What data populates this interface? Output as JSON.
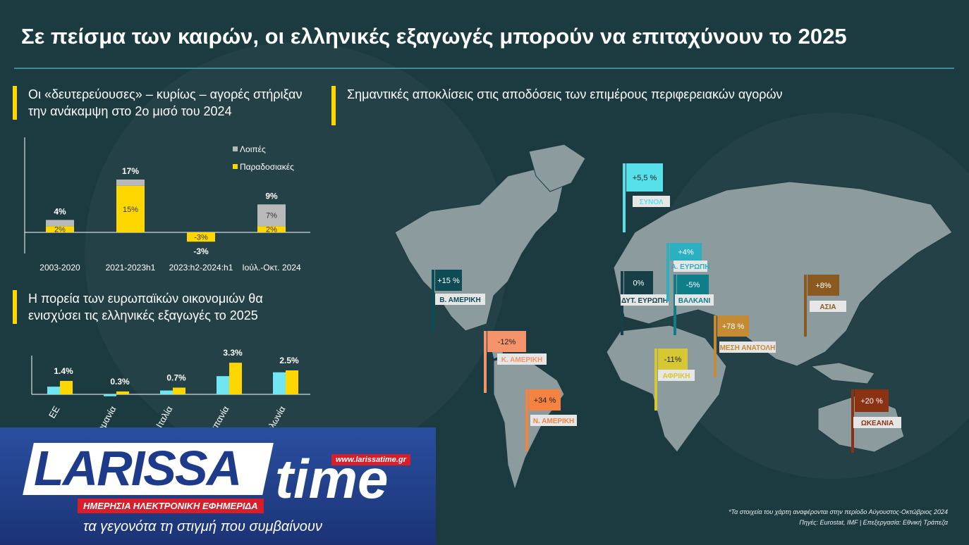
{
  "title": "Σε πείσμα των καιρών, οι ελληνικές εξαγωγές μπορούν να επιταχύνουν το 2025",
  "chart_data": [
    {
      "type": "bar",
      "stacked": true,
      "title": "Οι «δευτερεύουσες» – κυρίως – αγορές στήριξαν την ανάκαμψη στο 2ο μισό του 2024",
      "categories": [
        "2003-2020",
        "2021-2023h1",
        "2023:h2-2024:h1",
        "Ιούλ.-Οκτ. 2024"
      ],
      "series": [
        {
          "name": "Παραδοσιακές",
          "color": "#ffd700",
          "values": [
            2,
            15,
            -3,
            2
          ],
          "value_labels": [
            "2%",
            "15%",
            "-3%",
            "2%"
          ]
        },
        {
          "name": "Λοιπές",
          "color": "#b9b9b9",
          "values": [
            2,
            2,
            null,
            7
          ],
          "value_labels": [
            null,
            null,
            null,
            "7%"
          ]
        }
      ],
      "totals": [
        4,
        17,
        -3,
        9
      ],
      "total_labels": [
        "4%",
        "17%",
        "-3%",
        "9%"
      ]
    },
    {
      "type": "bar",
      "title": "Η πορεία των ευρωπαϊκών οικονομιών θα ενισχύσει τις ελληνικές εξαγωγές το 2025",
      "categories": [
        "ΕΕ",
        "Γερμανία",
        "Ιταλία",
        "Ισπανία",
        "Πολωνία"
      ],
      "series": [
        {
          "color": "#6fe6f2",
          "values": [
            0.8,
            -0.2,
            0.4,
            1.9,
            2.3
          ]
        },
        {
          "color": "#ffd700",
          "values": [
            1.4,
            0.3,
            0.7,
            3.3,
            2.5
          ],
          "value_labels": [
            "1.4%",
            "0.3%",
            "0.7%",
            "3.3%",
            "2.5%"
          ]
        }
      ]
    }
  ],
  "map": {
    "title": "Σημαντικές αποκλίσεις στις αποδόσεις των επιμέρους περιφερειακών αγορών",
    "flags": [
      {
        "value": "+5,5 %",
        "region": "ΣΥΝΟΛ",
        "color": "#57e0ea"
      },
      {
        "value": "+15 %",
        "region": "Β. ΑΜΕΡΙΚΗ",
        "color": "#0d4b55"
      },
      {
        "value": "-12%",
        "region": "Κ. ΑΜΕΡΙΚΗ",
        "color": "#f5936b"
      },
      {
        "value": "+34 %",
        "region": "Ν. ΑΜΕΡΙΚΗ",
        "color": "#f5823f"
      },
      {
        "value": "0%",
        "region": "ΔΥΤ. ΕΥΡΩΠΗ",
        "color": "#163f48"
      },
      {
        "value": "+4%",
        "region": "Α. ΕΥΡΩΠΗ",
        "color": "#2ab0c0"
      },
      {
        "value": "-5%",
        "region": "ΒΑΛΚΑΝΙ",
        "color": "#0f7d8a"
      },
      {
        "value": "-11%",
        "region": "ΑΦΡΙΚΗ",
        "color": "#d7c833"
      },
      {
        "value": "+78 %",
        "region": "ΜΕΣΗ ΑΝΑΤΟΛΗ",
        "color": "#c48a34"
      },
      {
        "value": "+8%",
        "region": "ΑΣΙΑ",
        "color": "#8a5a20"
      },
      {
        "value": "+20 %",
        "region": "ΩΚΕΑΝΙΑ",
        "color": "#8a3212"
      }
    ]
  },
  "footer": {
    "note": "*Τα στοιχεία του χάρτη αναφέρονται στην περίοδο Αύγουστος-Οκτώβριος 2024",
    "source": "Πηγές: Eurostat, IMF | Επεξεργασία: Εθνική Τράπεζα"
  },
  "logo": {
    "name": "LARISSA",
    "name2": "time",
    "url": "www.larissatime.gr",
    "subtitle": "ΗΜΕΡΗΣΙΑ ΗΛΕΚΤΡΟΝΙΚΗ ΕΦΗΜΕΡΙΔΑ",
    "slogan": "τα γεγονότα τη στιγμή που συμβαίνουν"
  }
}
